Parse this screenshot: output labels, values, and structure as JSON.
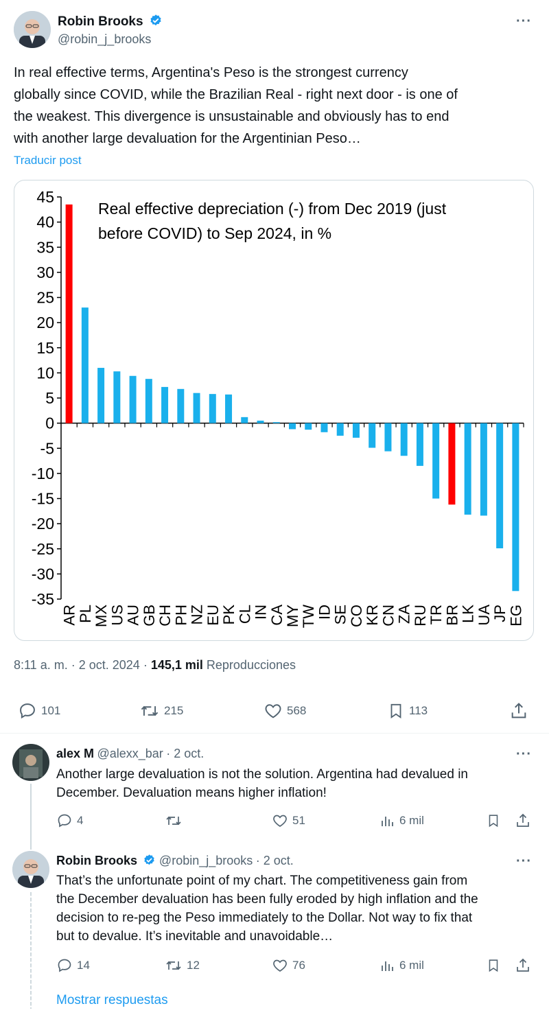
{
  "main_tweet": {
    "author_name": "Robin Brooks",
    "author_handle": "@robin_j_brooks",
    "text": "In real effective terms, Argentina's Peso is the strongest currency globally since COVID, while the Brazilian Real - right next door - is one of the weakest. This divergence is unsustainable and obviously has to end with another large devaluation for the Argentinian Peso…",
    "text_lines": [
      "In real effective terms, Argentina's Peso is the strongest currency",
      "globally since COVID, while the Brazilian Real - right next door - is one of",
      "the weakest. This divergence is unsustainable and obviously has to end",
      "with another large devaluation for the Argentinian Peso…"
    ],
    "translate_label": "Traducir post",
    "time": "8:11 a. m.",
    "date": "2 oct. 2024",
    "views_count": "145,1 mil",
    "views_label": "Reproducciones",
    "replies": "101",
    "reposts": "215",
    "likes": "568",
    "bookmarks": "113"
  },
  "chart_data": {
    "type": "bar",
    "title_lines": [
      "Real effective depreciation (-) from Dec 2019 (just",
      "before COVID) to Sep 2024, in %"
    ],
    "categories": [
      "AR",
      "PL",
      "MX",
      "US",
      "AU",
      "GB",
      "CH",
      "PH",
      "NZ",
      "EU",
      "PK",
      "CL",
      "IN",
      "CA",
      "MY",
      "TW",
      "ID",
      "SE",
      "CO",
      "KR",
      "CN",
      "ZA",
      "RU",
      "TR",
      "BR",
      "LK",
      "UA",
      "JP",
      "EG"
    ],
    "values": [
      43.5,
      23,
      11,
      10.3,
      9.4,
      8.8,
      7.2,
      6.8,
      6,
      5.8,
      5.7,
      1.2,
      0.5,
      0.2,
      -1.2,
      -1.3,
      -1.8,
      -2.5,
      -2.9,
      -4.9,
      -5.6,
      -6.5,
      -8.5,
      -15,
      -16.2,
      -18.2,
      -18.4,
      -24.9,
      -33.4
    ],
    "highlight": [
      "AR",
      "BR"
    ],
    "bar_color": "#1ab0ec",
    "highlight_color": "#ff0000",
    "ylim": [
      -35,
      45
    ],
    "yticks": [
      "45",
      "40",
      "35",
      "30",
      "25",
      "20",
      "15",
      "10",
      "5",
      "0",
      "-5",
      "-10",
      "-15",
      "-20",
      "-25",
      "-30",
      "-35"
    ],
    "grid": false
  },
  "replies": [
    {
      "author_name": "alex M",
      "author_handle": "@alexx_bar",
      "date": "2 oct.",
      "verified": false,
      "text_lines": [
        "Another large devaluation is not the solution. Argentina had devalued in",
        "December. Devaluation means higher inflation!"
      ],
      "replies": "4",
      "reposts": "",
      "likes": "51",
      "views": "6 mil"
    },
    {
      "author_name": "Robin Brooks",
      "author_handle": "@robin_j_brooks",
      "date": "2 oct.",
      "verified": true,
      "text_lines": [
        "That’s the unfortunate point of my chart. The competitiveness gain from",
        "the December devaluation has been fully eroded by high inflation and the",
        "decision to re-peg the Peso immediately to the Dollar. Not way to fix that",
        "but to devalue. It’s inevitable and unavoidable…"
      ],
      "replies": "14",
      "reposts": "12",
      "likes": "76",
      "views": "6 mil"
    }
  ],
  "show_replies_label": "Mostrar respuestas"
}
